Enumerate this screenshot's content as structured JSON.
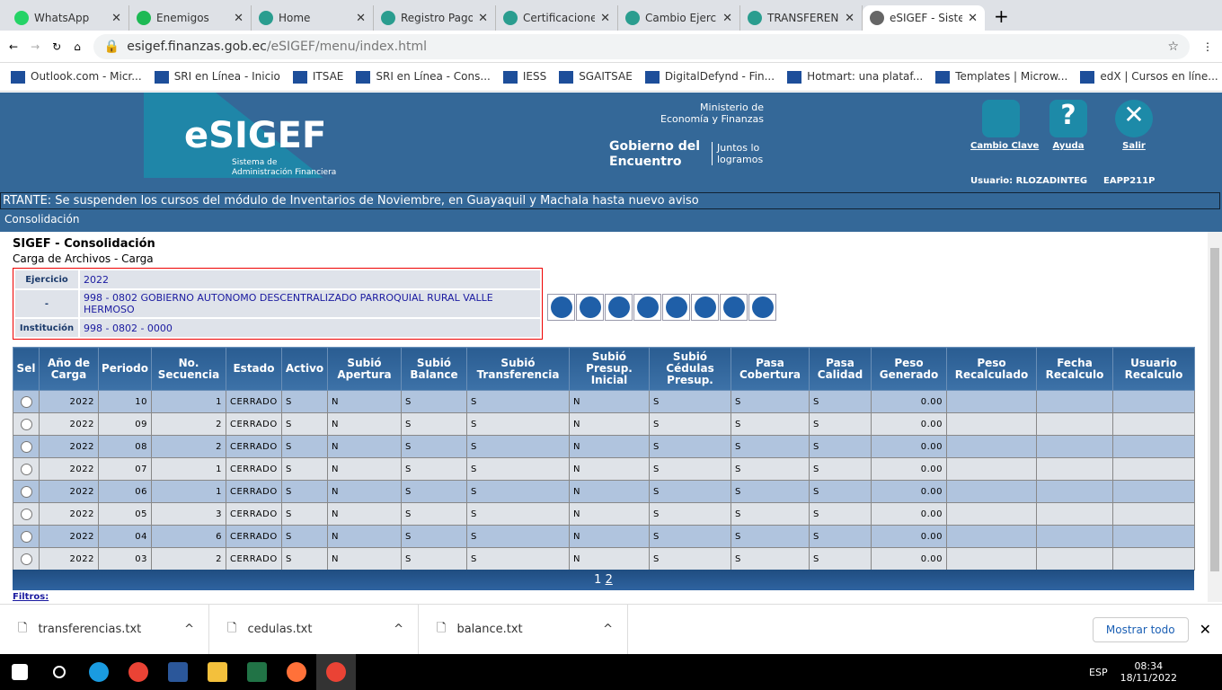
{
  "browser": {
    "tabs": [
      {
        "label": "WhatsApp",
        "color": "#25d366"
      },
      {
        "label": "Enemigos",
        "color": "#1db954"
      },
      {
        "label": "Home",
        "color": "#2a9d8f"
      },
      {
        "label": "Registro Pago",
        "color": "#2a9d8f"
      },
      {
        "label": "Certificacione",
        "color": "#2a9d8f"
      },
      {
        "label": "Cambio Ejerc",
        "color": "#2a9d8f"
      },
      {
        "label": "TRANSFEREN",
        "color": "#2a9d8f"
      },
      {
        "label": "eSIGEF - Siste",
        "color": "#666"
      }
    ],
    "url_host": "esigef.finanzas.gob.ec",
    "url_path": "/eSIGEF/menu/index.html",
    "bookmarks": [
      "Outlook.com - Micr...",
      "SRI en Línea - Inicio",
      "ITSAE",
      "SRI en Línea - Cons...",
      "IESS",
      "SGAITSAE",
      "DigitalDefynd - Fin...",
      "Hotmart: una plataf...",
      "Templates | Microw...",
      "edX | Cursos en líne..."
    ]
  },
  "header": {
    "logo": "eSIGEF",
    "logo_sub": "Sistema de Administración Financiera",
    "ministry": "Ministerio de Economía y Finanzas",
    "gov": "Gobierno del Encuentro",
    "slogan": "Juntos lo logramos",
    "actions": [
      "Cambio Clave",
      "Ayuda",
      "Salir"
    ],
    "user": "Usuario: RLOZADINTEG",
    "code": "EAPP211P",
    "marquee": "RTANTE: Se suspenden los cursos del módulo de Inventarios de Noviembre, en Guayaquil y Machala hasta nuevo aviso",
    "menu": "Consolidación"
  },
  "page": {
    "title": "SIGEF - Consolidación",
    "subtitle": "Carga de Archivos - Carga",
    "info": [
      {
        "label": "Ejercicio",
        "value": "2022"
      },
      {
        "label": "-",
        "value": "998 - 0802 GOBIERNO AUTONOMO DESCENTRALIZADO PARROQUIAL RURAL VALLE HERMOSO"
      },
      {
        "label": "Institución",
        "value": "998 - 0802 - 0000"
      }
    ],
    "columns": [
      "Sel",
      "Año de Carga",
      "Periodo",
      "No. Secuencia",
      "Estado",
      "Activo",
      "Subió Apertura",
      "Subió Balance",
      "Subió Transferencia",
      "Subió Presup. Inicial",
      "Subió Cédulas Presup.",
      "Pasa Cobertura",
      "Pasa Calidad",
      "Peso Generado",
      "Peso Recalculado",
      "Fecha Recalculo",
      "Usuario Recalculo"
    ],
    "rows": [
      [
        "2022",
        "10",
        "1",
        "CERRADO",
        "S",
        "N",
        "S",
        "S",
        "N",
        "S",
        "S",
        "S",
        "0.00",
        "",
        "",
        ""
      ],
      [
        "2022",
        "09",
        "2",
        "CERRADO",
        "S",
        "N",
        "S",
        "S",
        "N",
        "S",
        "S",
        "S",
        "0.00",
        "",
        "",
        ""
      ],
      [
        "2022",
        "08",
        "2",
        "CERRADO",
        "S",
        "N",
        "S",
        "S",
        "N",
        "S",
        "S",
        "S",
        "0.00",
        "",
        "",
        ""
      ],
      [
        "2022",
        "07",
        "1",
        "CERRADO",
        "S",
        "N",
        "S",
        "S",
        "N",
        "S",
        "S",
        "S",
        "0.00",
        "",
        "",
        ""
      ],
      [
        "2022",
        "06",
        "1",
        "CERRADO",
        "S",
        "N",
        "S",
        "S",
        "N",
        "S",
        "S",
        "S",
        "0.00",
        "",
        "",
        ""
      ],
      [
        "2022",
        "05",
        "3",
        "CERRADO",
        "S",
        "N",
        "S",
        "S",
        "N",
        "S",
        "S",
        "S",
        "0.00",
        "",
        "",
        ""
      ],
      [
        "2022",
        "04",
        "6",
        "CERRADO",
        "S",
        "N",
        "S",
        "S",
        "N",
        "S",
        "S",
        "S",
        "0.00",
        "",
        "",
        ""
      ],
      [
        "2022",
        "03",
        "2",
        "CERRADO",
        "S",
        "N",
        "S",
        "S",
        "N",
        "S",
        "S",
        "S",
        "0.00",
        "",
        "",
        ""
      ]
    ],
    "pages": [
      "1",
      "2"
    ],
    "filters": "Filtros:"
  },
  "downloads": {
    "items": [
      "transferencias.txt",
      "cedulas.txt",
      "balance.txt"
    ],
    "show_all": "Mostrar todo"
  },
  "taskbar": {
    "lang": "ESP",
    "time": "08:34",
    "date": "18/11/2022"
  }
}
